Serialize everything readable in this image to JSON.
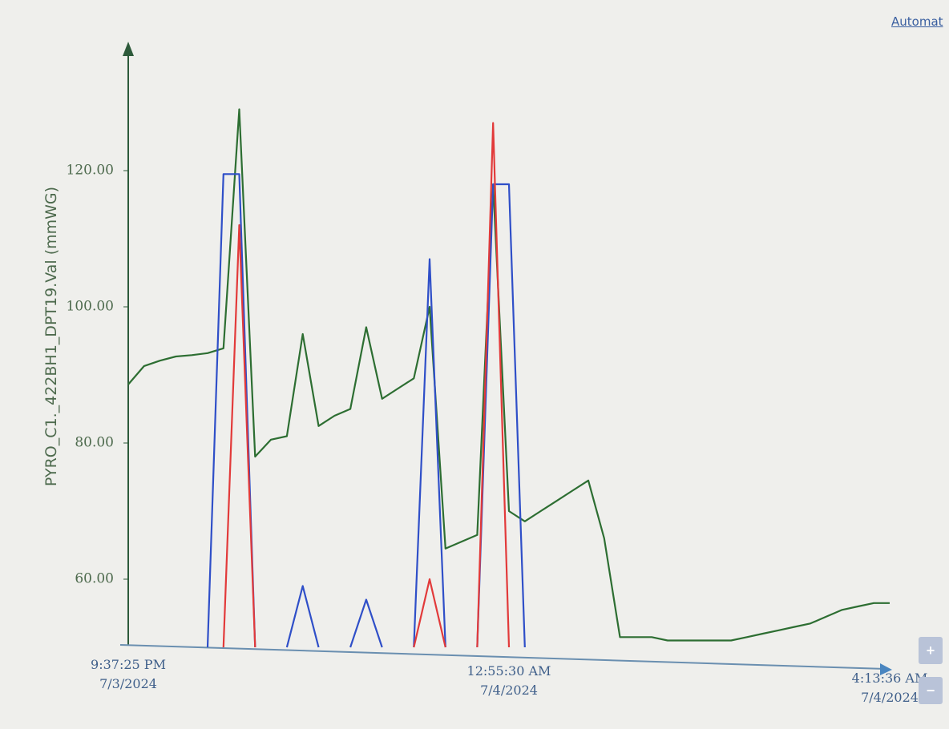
{
  "header": {
    "link": "Automat"
  },
  "chart_data": {
    "type": "line",
    "y_label": "PYRO_C1._422BH1_DPT19.Val (mmWG)",
    "categories": [
      "9:37:25 PM\n7/3/2024",
      null,
      null,
      null,
      null,
      null,
      null,
      null,
      null,
      null,
      null,
      null,
      null,
      null,
      null,
      null,
      null,
      null,
      null,
      null,
      null,
      null,
      null,
      null,
      "12:55:30 AM\n7/4/2024",
      null,
      null,
      null,
      null,
      null,
      null,
      null,
      null,
      null,
      null,
      null,
      null,
      null,
      null,
      null,
      null,
      null,
      null,
      null,
      null,
      null,
      null,
      null,
      "4:13:36 AM\n7/4/2024"
    ],
    "series": [
      {
        "color": "#2d6e32",
        "values": [
          88.6,
          91.3,
          92.1,
          92.7,
          92.9,
          93.2,
          93.9,
          129,
          78,
          80.5,
          81,
          96,
          82.5,
          84,
          85,
          97,
          86.5,
          88,
          89.5,
          100,
          64.5,
          65.5,
          66.5,
          118,
          70,
          68.5,
          70,
          71.5,
          73,
          74.5,
          66,
          51.5,
          51.5,
          51.5,
          51,
          51,
          51,
          51,
          51,
          51.5,
          52,
          52.5,
          53,
          53.5,
          54.5,
          55.5,
          56,
          56.5,
          56.5
        ]
      },
      {
        "color": "#2f4fc8",
        "values": [
          null,
          null,
          null,
          null,
          null,
          50,
          119.5,
          119.5,
          50,
          null,
          50,
          59,
          50,
          null,
          50,
          57,
          50,
          null,
          50,
          107,
          50,
          null,
          50,
          118,
          118,
          50,
          null,
          null,
          null,
          null,
          null,
          null,
          null,
          null,
          null,
          null,
          null,
          null,
          null,
          null,
          null,
          null,
          null,
          null,
          null,
          null,
          null,
          null,
          null
        ]
      },
      {
        "color": "#e23a3a",
        "values": [
          null,
          null,
          null,
          null,
          null,
          null,
          50,
          112,
          50,
          null,
          null,
          null,
          null,
          null,
          null,
          null,
          null,
          null,
          50,
          60,
          50,
          null,
          50,
          127,
          50,
          null,
          null,
          null,
          null,
          null,
          null,
          null,
          null,
          null,
          null,
          null,
          null,
          null,
          null,
          null,
          null,
          null,
          null,
          null,
          null,
          null,
          null,
          null,
          null
        ]
      }
    ],
    "ylim": [
      50,
      138
    ],
    "yticks": [
      {
        "value": 60,
        "label": "60.00"
      },
      {
        "value": 80,
        "label": "80.00"
      },
      {
        "value": 100,
        "label": "100.00"
      },
      {
        "value": 120,
        "label": "120.00"
      }
    ],
    "grid": false
  },
  "controls": [
    "+",
    "−"
  ]
}
